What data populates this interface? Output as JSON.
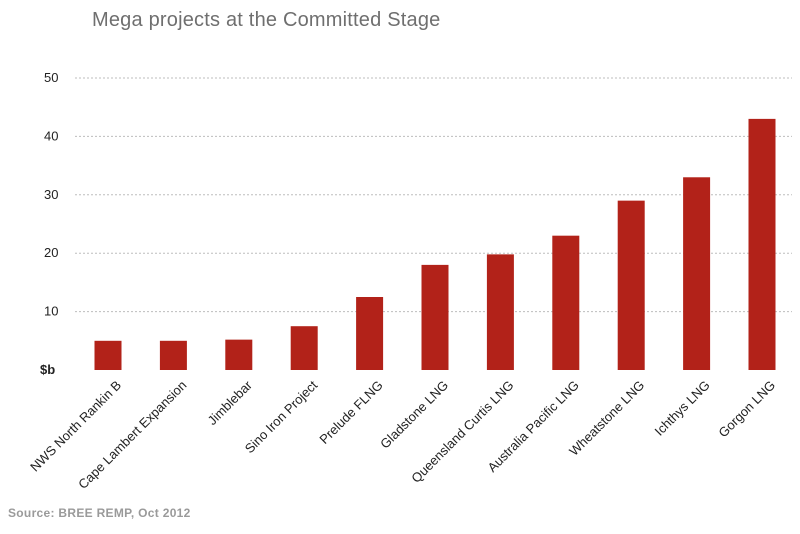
{
  "chart_data": {
    "type": "bar",
    "title": "Mega projects at the Committed Stage",
    "ylabel": "$b",
    "xlabel": "",
    "ylim": [
      0,
      50
    ],
    "yticks": [
      10,
      20,
      30,
      40,
      50
    ],
    "categories": [
      "NWS North Rankin B",
      "Cape Lambert Expansion",
      "Jimblebar",
      "Sino Iron Project",
      "Prelude FLNG",
      "Gladstone LNG",
      "Queensland Curtis LNG",
      "Australia Pacific LNG",
      "Wheatstone LNG",
      "Ichthys LNG",
      "Gorgon LNG"
    ],
    "values": [
      5,
      5,
      5.2,
      7.5,
      12.5,
      18,
      19.8,
      23,
      29,
      33,
      43
    ],
    "bar_color": "#b22219",
    "grid": true
  },
  "source": "Source:  BREE REMP, Oct 2012"
}
